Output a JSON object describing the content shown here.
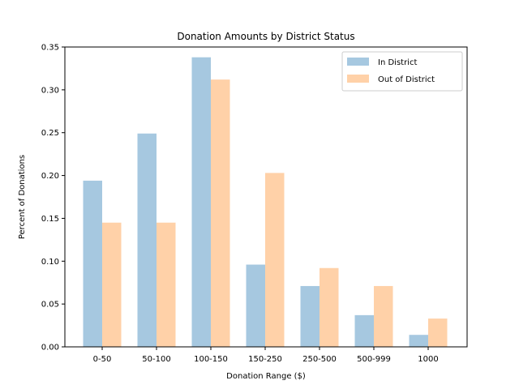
{
  "chart_data": {
    "type": "bar",
    "title": "Donation Amounts by District Status",
    "xlabel": "Donation Range ($)",
    "ylabel": "Percent of Donations",
    "categories": [
      "0-50",
      "50-100",
      "100-150",
      "150-250",
      "250-500",
      "500-999",
      "1000"
    ],
    "series": [
      {
        "name": "In District",
        "color": "#a6c8e0",
        "values": [
          0.194,
          0.249,
          0.338,
          0.096,
          0.071,
          0.037,
          0.014
        ]
      },
      {
        "name": "Out of District",
        "color": "#ffd1a8",
        "values": [
          0.145,
          0.145,
          0.312,
          0.203,
          0.092,
          0.071,
          0.033
        ]
      }
    ],
    "ylim": [
      0,
      0.35
    ],
    "yticks": [
      "0.00",
      "0.05",
      "0.10",
      "0.15",
      "0.20",
      "0.25",
      "0.30",
      "0.35"
    ],
    "legend": "top-right",
    "grid": false
  }
}
